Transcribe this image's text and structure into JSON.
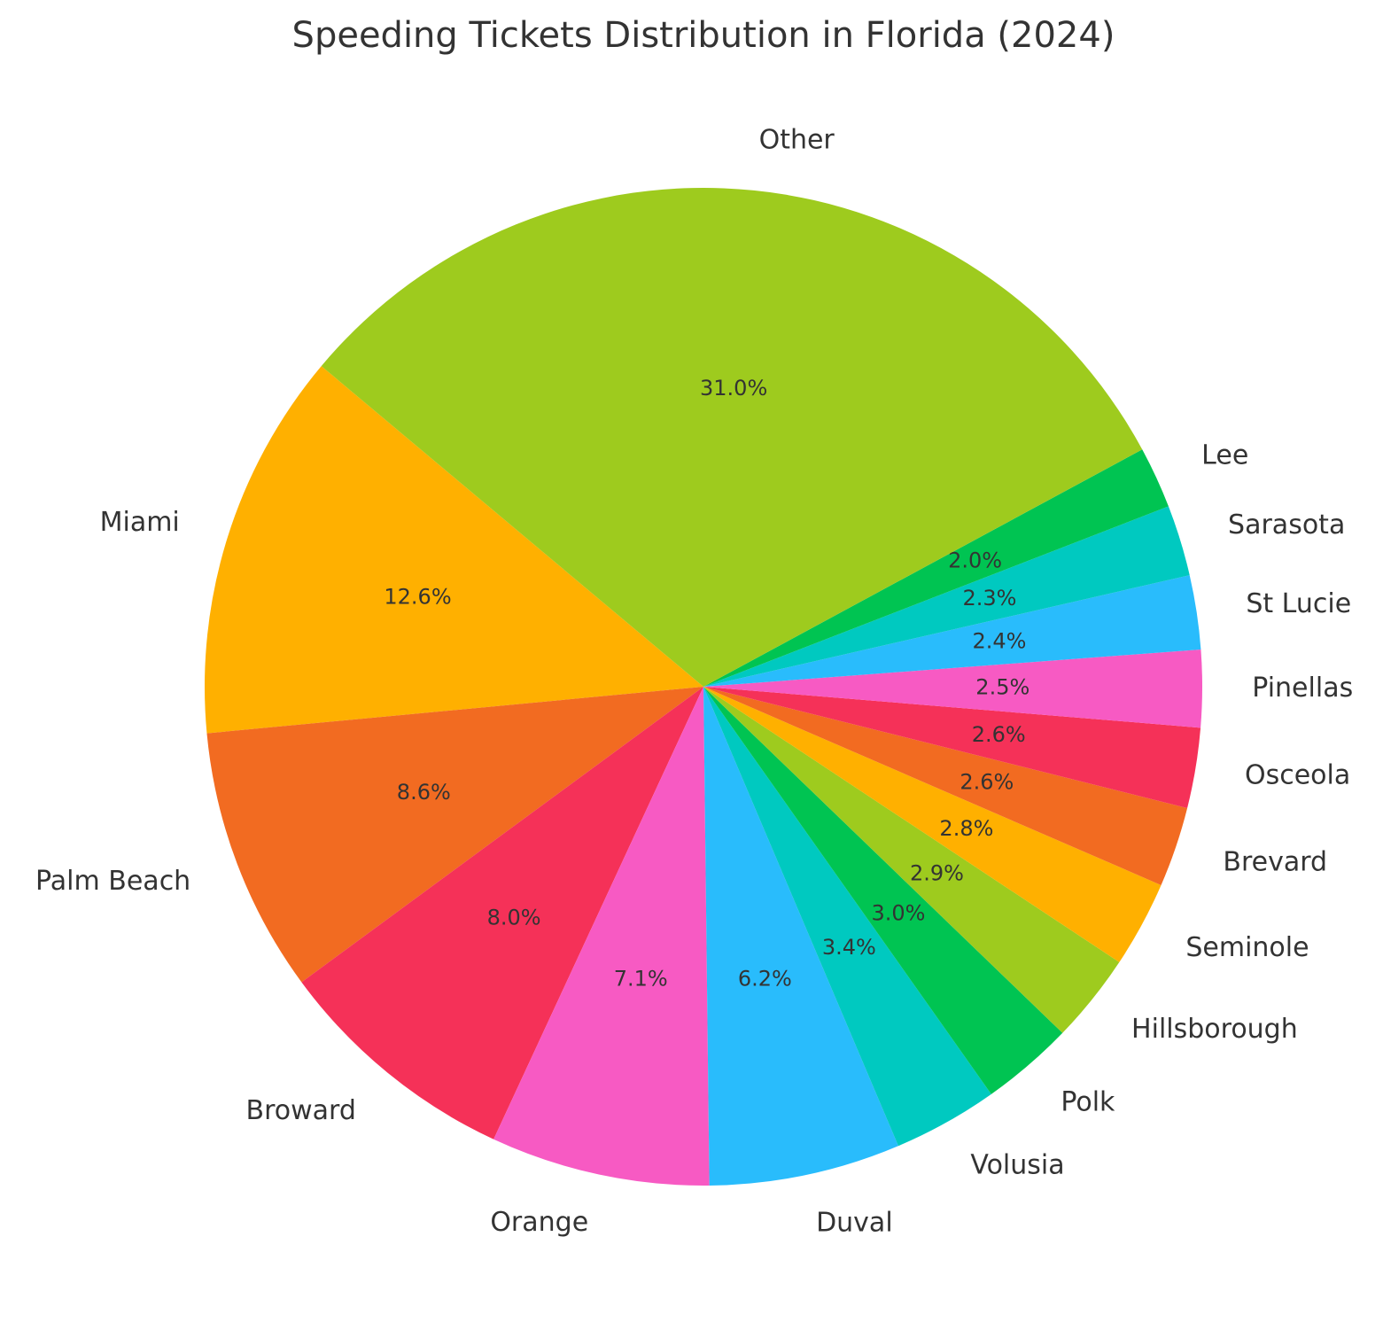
{
  "chart_data": {
    "type": "pie",
    "title": "Speeding Tickets Distribution in Florida (2024)",
    "categories": [
      "Miami",
      "Palm Beach",
      "Broward",
      "Orange",
      "Duval",
      "Volusia",
      "Polk",
      "Hillsborough",
      "Seminole",
      "Brevard",
      "Osceola",
      "Pinellas",
      "St Lucie",
      "Sarasota",
      "Lee",
      "Other"
    ],
    "values": [
      12.6,
      8.6,
      8.0,
      7.1,
      6.2,
      3.4,
      3.0,
      2.9,
      2.8,
      2.6,
      2.6,
      2.5,
      2.4,
      2.3,
      2.0,
      31.0
    ],
    "value_labels": [
      "12.6%",
      "8.6%",
      "8.0%",
      "7.1%",
      "6.2%",
      "3.4%",
      "3.0%",
      "2.9%",
      "2.8%",
      "2.6%",
      "2.6%",
      "2.5%",
      "2.4%",
      "2.3%",
      "2.0%",
      "31.0%"
    ],
    "colors": [
      "#ffb000",
      "#f26b21",
      "#f53158",
      "#f75ac3",
      "#29bcfc",
      "#00c9c0",
      "#00c452",
      "#9ecb1e",
      "#ffb000",
      "#f26b21",
      "#f53158",
      "#f75ac3",
      "#29bcfc",
      "#00c9c0",
      "#00c452",
      "#9ecb1e"
    ]
  }
}
